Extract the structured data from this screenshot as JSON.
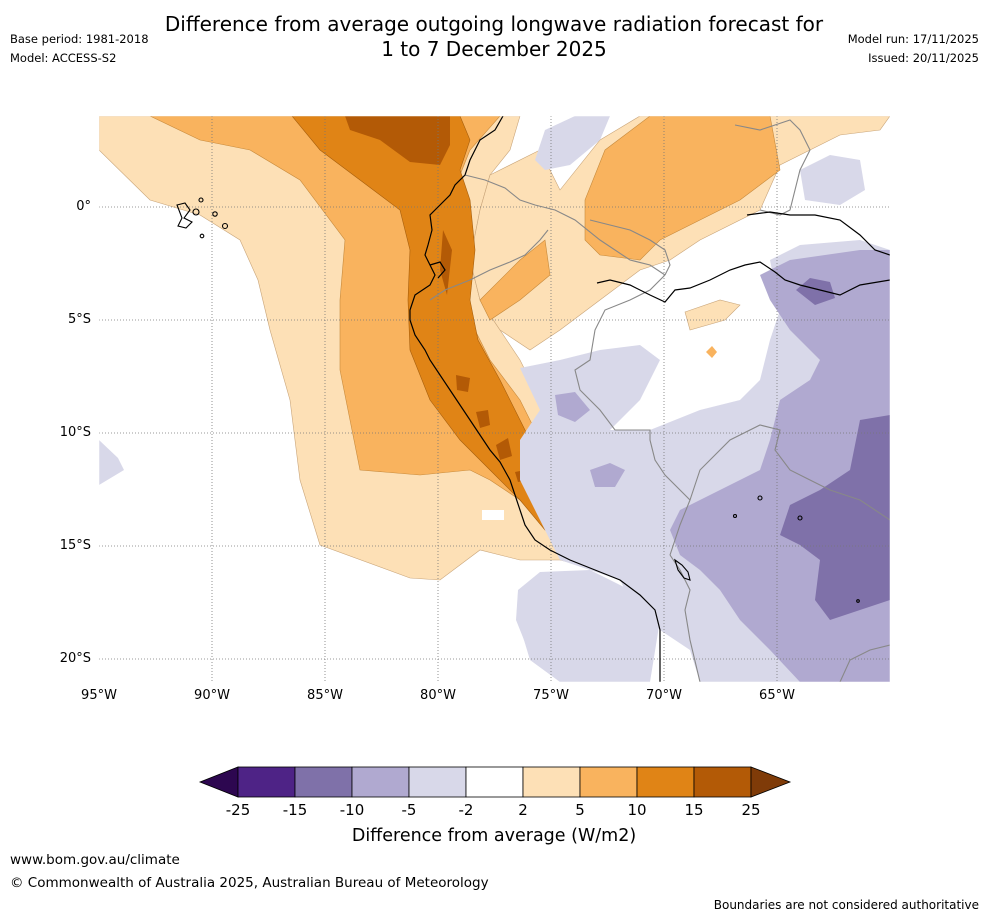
{
  "title": {
    "line1": "Difference from average outgoing longwave radiation forecast for",
    "line2": "1 to 7 December 2025"
  },
  "meta": {
    "base_period": "Base period: 1981-2018",
    "model": "Model: ACCESS-S2",
    "model_run": "Model run: 17/11/2025",
    "issued": "Issued: 20/11/2025"
  },
  "map": {
    "lat_labels": [
      "0°",
      "5°S",
      "10°S",
      "15°S",
      "20°S"
    ],
    "lon_labels": [
      "95°W",
      "90°W",
      "85°W",
      "80°W",
      "75°W",
      "70°W",
      "65°W"
    ]
  },
  "colorbar": {
    "title": "Difference from average (W/m2)",
    "ticks": [
      "-25",
      "-15",
      "-10",
      "-5",
      "-2",
      "2",
      "5",
      "10",
      "15",
      "25"
    ],
    "colors": [
      "#4e2386",
      "#7f71a9",
      "#b0a9d0",
      "#d8d8e9",
      "#ffffff",
      "#fde0b6",
      "#f9b35e",
      "#e08416",
      "#b35a06"
    ],
    "under_color": "#2d0750",
    "over_color": "#7f3b08"
  },
  "footer": {
    "url": "www.bom.gov.au/climate",
    "copyright": "© Commonwealth of Australia 2025, Australian Bureau of Meteorology",
    "disclaimer": "Boundaries are not considered authoritative"
  }
}
